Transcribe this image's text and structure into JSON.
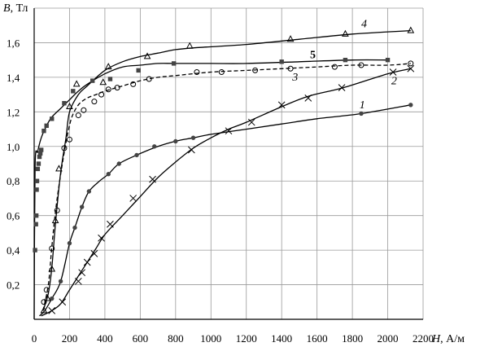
{
  "chart_data": {
    "type": "line",
    "title": "",
    "xlabel_var": "H",
    "xlabel_unit": ", А/м",
    "ylabel_var": "B",
    "ylabel_unit": ", Тл",
    "xlim": [
      0,
      2200
    ],
    "ylim": [
      0,
      1.8
    ],
    "grid": true,
    "x_ticks": [
      0,
      200,
      400,
      600,
      800,
      1000,
      1200,
      1400,
      1600,
      1800,
      2000,
      2200
    ],
    "x_tick_labels": [
      "0",
      "200",
      "400",
      "600",
      "800",
      "1000",
      "1200",
      "1400",
      "1600",
      "1800",
      "2000",
      "2200"
    ],
    "y_ticks": [
      0.2,
      0.4,
      0.6,
      0.8,
      1.0,
      1.2,
      1.4,
      1.6
    ],
    "y_tick_labels": [
      "0,2",
      "0,4",
      "0,6",
      "0,8",
      "1,0",
      "1,2",
      "1,4",
      "1,6"
    ],
    "series": [
      {
        "name": "1",
        "marker": "dot",
        "dashed": false,
        "points": [
          [
            30,
            0.02
          ],
          [
            60,
            0.05
          ],
          [
            100,
            0.12
          ],
          [
            150,
            0.22
          ],
          [
            200,
            0.44
          ],
          [
            230,
            0.53
          ],
          [
            270,
            0.65
          ],
          [
            310,
            0.74
          ],
          [
            370,
            0.8
          ],
          [
            420,
            0.84
          ],
          [
            480,
            0.9
          ],
          [
            580,
            0.95
          ],
          [
            700,
            1.0
          ],
          [
            800,
            1.03
          ],
          [
            900,
            1.05
          ],
          [
            1000,
            1.07
          ],
          [
            1200,
            1.1
          ],
          [
            1400,
            1.13
          ],
          [
            1600,
            1.16
          ],
          [
            1850,
            1.19
          ],
          [
            2130,
            1.24
          ]
        ],
        "marks": [
          [
            100,
            0.12
          ],
          [
            150,
            0.22
          ],
          [
            200,
            0.44
          ],
          [
            230,
            0.53
          ],
          [
            270,
            0.65
          ],
          [
            310,
            0.74
          ],
          [
            420,
            0.84
          ],
          [
            480,
            0.9
          ],
          [
            580,
            0.95
          ],
          [
            680,
            1.0
          ],
          [
            800,
            1.03
          ],
          [
            900,
            1.05
          ],
          [
            1850,
            1.19
          ],
          [
            2130,
            1.24
          ]
        ],
        "label_pos": [
          1840,
          1.22
        ]
      },
      {
        "name": "2",
        "marker": "x",
        "dashed": false,
        "points": [
          [
            40,
            0.02
          ],
          [
            100,
            0.05
          ],
          [
            150,
            0.09
          ],
          [
            200,
            0.17
          ],
          [
            250,
            0.25
          ],
          [
            300,
            0.33
          ],
          [
            350,
            0.41
          ],
          [
            400,
            0.49
          ],
          [
            500,
            0.6
          ],
          [
            600,
            0.71
          ],
          [
            700,
            0.82
          ],
          [
            800,
            0.91
          ],
          [
            900,
            0.99
          ],
          [
            1000,
            1.05
          ],
          [
            1100,
            1.1
          ],
          [
            1200,
            1.14
          ],
          [
            1400,
            1.23
          ],
          [
            1550,
            1.29
          ],
          [
            1750,
            1.34
          ],
          [
            2000,
            1.42
          ],
          [
            2130,
            1.45
          ]
        ],
        "marks": [
          [
            100,
            0.05
          ],
          [
            160,
            0.1
          ],
          [
            250,
            0.22
          ],
          [
            270,
            0.27
          ],
          [
            300,
            0.33
          ],
          [
            340,
            0.38
          ],
          [
            380,
            0.47
          ],
          [
            430,
            0.55
          ],
          [
            560,
            0.7
          ],
          [
            670,
            0.81
          ],
          [
            890,
            0.98
          ],
          [
            1100,
            1.09
          ],
          [
            1230,
            1.14
          ],
          [
            1400,
            1.24
          ],
          [
            1550,
            1.28
          ],
          [
            1740,
            1.34
          ],
          [
            2030,
            1.43
          ],
          [
            2130,
            1.45
          ]
        ],
        "label_pos": [
          2020,
          1.36
        ]
      },
      {
        "name": "3",
        "marker": "circle",
        "dashed": true,
        "points": [
          [
            50,
            0.05
          ],
          [
            80,
            0.2
          ],
          [
            100,
            0.42
          ],
          [
            120,
            0.62
          ],
          [
            150,
            0.84
          ],
          [
            180,
            1.02
          ],
          [
            210,
            1.16
          ],
          [
            250,
            1.24
          ],
          [
            300,
            1.28
          ],
          [
            350,
            1.3
          ],
          [
            400,
            1.32
          ],
          [
            500,
            1.35
          ],
          [
            600,
            1.38
          ],
          [
            700,
            1.4
          ],
          [
            800,
            1.41
          ],
          [
            1000,
            1.43
          ],
          [
            1200,
            1.44
          ],
          [
            1400,
            1.45
          ],
          [
            1600,
            1.46
          ],
          [
            1800,
            1.47
          ],
          [
            2000,
            1.47
          ],
          [
            2130,
            1.48
          ]
        ],
        "marks": [
          [
            55,
            0.1
          ],
          [
            70,
            0.17
          ],
          [
            100,
            0.41
          ],
          [
            130,
            0.63
          ],
          [
            170,
            0.99
          ],
          [
            200,
            1.04
          ],
          [
            250,
            1.18
          ],
          [
            280,
            1.21
          ],
          [
            340,
            1.26
          ],
          [
            380,
            1.3
          ],
          [
            420,
            1.33
          ],
          [
            470,
            1.34
          ],
          [
            560,
            1.36
          ],
          [
            650,
            1.39
          ],
          [
            920,
            1.43
          ],
          [
            1060,
            1.43
          ],
          [
            1250,
            1.44
          ],
          [
            1450,
            1.45
          ],
          [
            1700,
            1.46
          ],
          [
            1850,
            1.47
          ],
          [
            2130,
            1.48
          ]
        ],
        "label_pos": [
          1460,
          1.38
        ]
      },
      {
        "name": "4",
        "marker": "triangle",
        "dashed": false,
        "points": [
          [
            50,
            0.05
          ],
          [
            80,
            0.15
          ],
          [
            100,
            0.3
          ],
          [
            120,
            0.55
          ],
          [
            150,
            0.85
          ],
          [
            180,
            1.05
          ],
          [
            200,
            1.2
          ],
          [
            250,
            1.3
          ],
          [
            300,
            1.35
          ],
          [
            400,
            1.44
          ],
          [
            500,
            1.49
          ],
          [
            600,
            1.52
          ],
          [
            700,
            1.54
          ],
          [
            800,
            1.56
          ],
          [
            900,
            1.57
          ],
          [
            1200,
            1.59
          ],
          [
            1500,
            1.62
          ],
          [
            1800,
            1.65
          ],
          [
            2130,
            1.67
          ]
        ],
        "marks": [
          [
            55,
            0.05
          ],
          [
            75,
            0.12
          ],
          [
            100,
            0.29
          ],
          [
            120,
            0.57
          ],
          [
            140,
            0.87
          ],
          [
            200,
            1.23
          ],
          [
            240,
            1.36
          ],
          [
            390,
            1.37
          ],
          [
            420,
            1.46
          ],
          [
            640,
            1.52
          ],
          [
            880,
            1.58
          ],
          [
            1450,
            1.62
          ],
          [
            1760,
            1.65
          ],
          [
            2130,
            1.67
          ]
        ],
        "label_pos": [
          1850,
          1.69
        ]
      },
      {
        "name": "5",
        "marker": "square",
        "dashed": false,
        "points": [
          [
            0,
            0.0
          ],
          [
            5,
            0.88
          ],
          [
            20,
            0.97
          ],
          [
            40,
            1.05
          ],
          [
            70,
            1.12
          ],
          [
            100,
            1.17
          ],
          [
            150,
            1.22
          ],
          [
            200,
            1.27
          ],
          [
            250,
            1.32
          ],
          [
            300,
            1.36
          ],
          [
            400,
            1.42
          ],
          [
            500,
            1.46
          ],
          [
            600,
            1.47
          ],
          [
            700,
            1.48
          ],
          [
            800,
            1.48
          ],
          [
            1000,
            1.48
          ],
          [
            1200,
            1.48
          ],
          [
            1500,
            1.49
          ],
          [
            1800,
            1.5
          ],
          [
            2000,
            1.5
          ]
        ],
        "marks": [
          [
            5,
            0.4
          ],
          [
            10,
            0.55
          ],
          [
            12,
            0.6
          ],
          [
            14,
            0.75
          ],
          [
            16,
            0.8
          ],
          [
            20,
            0.87
          ],
          [
            25,
            0.9
          ],
          [
            30,
            0.94
          ],
          [
            35,
            0.96
          ],
          [
            40,
            0.98
          ],
          [
            55,
            1.09
          ],
          [
            70,
            1.12
          ],
          [
            100,
            1.16
          ],
          [
            170,
            1.25
          ],
          [
            220,
            1.32
          ],
          [
            330,
            1.38
          ],
          [
            430,
            1.39
          ],
          [
            590,
            1.44
          ],
          [
            790,
            1.48
          ],
          [
            1400,
            1.49
          ],
          [
            1760,
            1.5
          ],
          [
            2000,
            1.5
          ]
        ],
        "label_pos": [
          1560,
          1.51
        ]
      }
    ]
  }
}
